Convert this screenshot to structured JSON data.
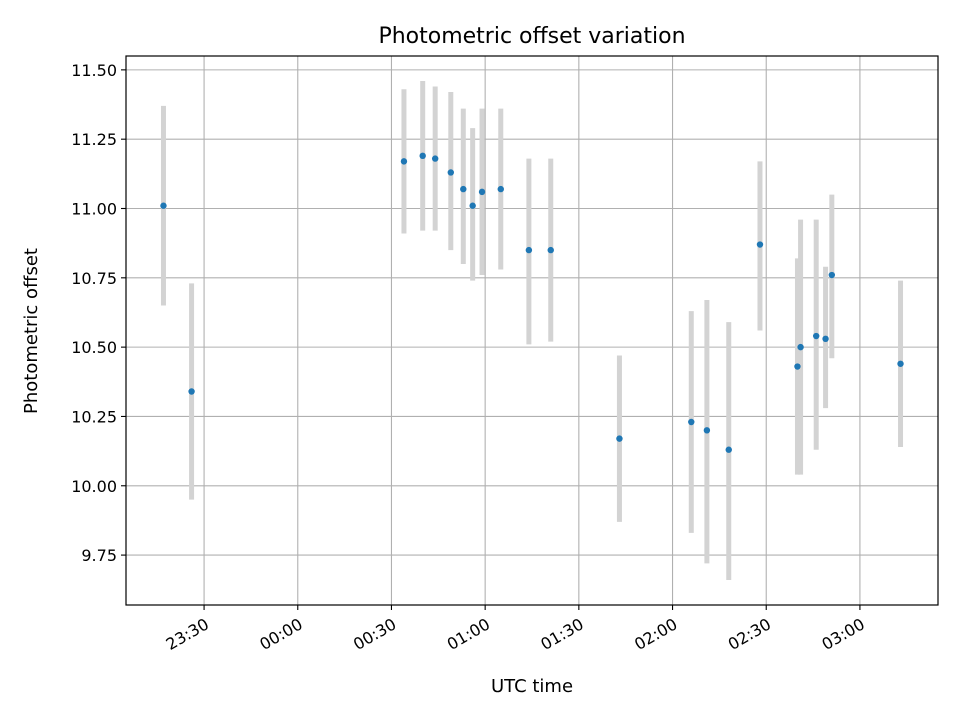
{
  "chart_data": {
    "type": "scatter",
    "title": "Photometric offset variation",
    "xlabel": "UTC time",
    "ylabel": "Photometric offset",
    "x_axis_type": "time",
    "xlim": [
      "23:05",
      "03:25"
    ],
    "ylim": [
      9.57,
      11.55
    ],
    "grid": true,
    "x_ticks": [
      "23:30",
      "00:00",
      "00:30",
      "01:00",
      "01:30",
      "02:00",
      "02:30",
      "03:00"
    ],
    "y_ticks": [
      "9.75",
      "10.00",
      "10.25",
      "10.50",
      "10.75",
      "11.00",
      "11.25",
      "11.50"
    ],
    "colors": {
      "point": "#1f77b4",
      "errorbar": "#d3d3d3",
      "grid": "#b0b0b0"
    },
    "series": [
      {
        "points": [
          {
            "x": "23:17",
            "y": 11.01,
            "err_low": 10.65,
            "err_high": 11.37
          },
          {
            "x": "23:26",
            "y": 10.34,
            "err_low": 9.95,
            "err_high": 10.73
          },
          {
            "x": "00:34",
            "y": 11.17,
            "err_low": 10.91,
            "err_high": 11.43
          },
          {
            "x": "00:40",
            "y": 11.19,
            "err_low": 10.92,
            "err_high": 11.46
          },
          {
            "x": "00:44",
            "y": 11.18,
            "err_low": 10.92,
            "err_high": 11.44
          },
          {
            "x": "00:49",
            "y": 11.13,
            "err_low": 10.85,
            "err_high": 11.42
          },
          {
            "x": "00:53",
            "y": 11.07,
            "err_low": 10.8,
            "err_high": 11.36
          },
          {
            "x": "00:56",
            "y": 11.01,
            "err_low": 10.74,
            "err_high": 11.29
          },
          {
            "x": "00:59",
            "y": 11.06,
            "err_low": 10.76,
            "err_high": 11.36
          },
          {
            "x": "01:05",
            "y": 11.07,
            "err_low": 10.78,
            "err_high": 11.36
          },
          {
            "x": "01:14",
            "y": 10.85,
            "err_low": 10.51,
            "err_high": 11.18
          },
          {
            "x": "01:21",
            "y": 10.85,
            "err_low": 10.52,
            "err_high": 11.18
          },
          {
            "x": "01:43",
            "y": 10.17,
            "err_low": 9.87,
            "err_high": 10.47
          },
          {
            "x": "02:06",
            "y": 10.23,
            "err_low": 9.83,
            "err_high": 10.63
          },
          {
            "x": "02:11",
            "y": 10.2,
            "err_low": 9.72,
            "err_high": 10.67
          },
          {
            "x": "02:18",
            "y": 10.13,
            "err_low": 9.66,
            "err_high": 10.59
          },
          {
            "x": "02:28",
            "y": 10.87,
            "err_low": 10.56,
            "err_high": 11.17
          },
          {
            "x": "02:40",
            "y": 10.43,
            "err_low": 10.04,
            "err_high": 10.82
          },
          {
            "x": "02:41",
            "y": 10.5,
            "err_low": 10.04,
            "err_high": 10.96
          },
          {
            "x": "02:46",
            "y": 10.54,
            "err_low": 10.13,
            "err_high": 10.96
          },
          {
            "x": "02:49",
            "y": 10.53,
            "err_low": 10.28,
            "err_high": 10.79
          },
          {
            "x": "02:51",
            "y": 10.76,
            "err_low": 10.46,
            "err_high": 11.05
          },
          {
            "x": "03:13",
            "y": 10.44,
            "err_low": 10.14,
            "err_high": 10.74
          }
        ]
      }
    ]
  }
}
